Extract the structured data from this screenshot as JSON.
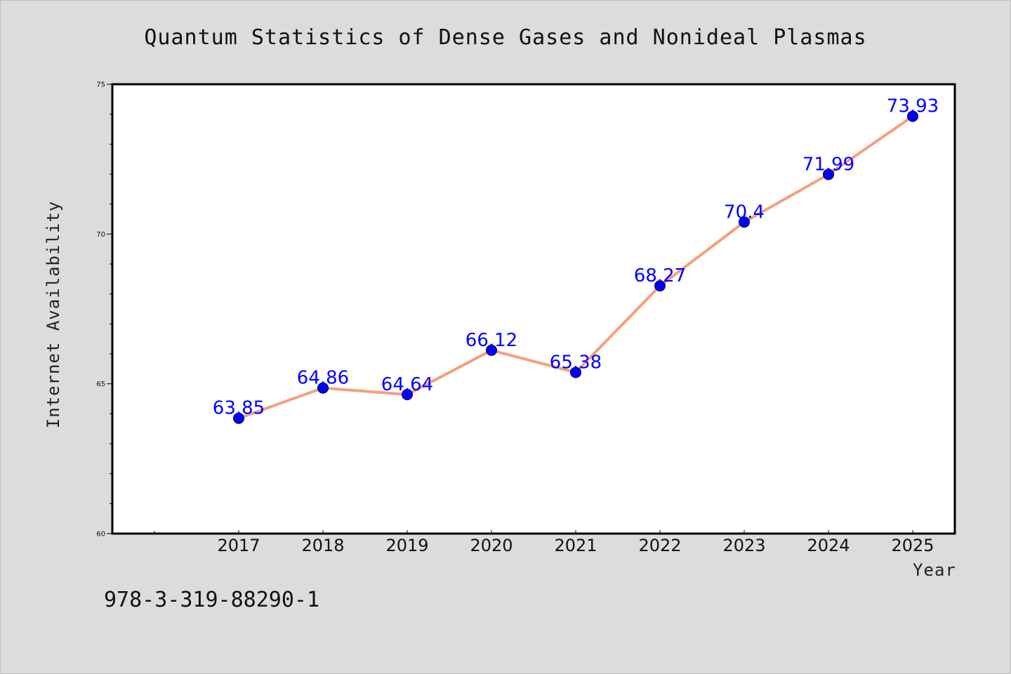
{
  "chart_data": {
    "type": "line",
    "title": "Quantum Statistics of Dense Gases and Nonideal Plasmas",
    "xlabel": "Year",
    "ylabel": "Internet Availability",
    "categories": [
      "2017",
      "2018",
      "2019",
      "2020",
      "2021",
      "2022",
      "2023",
      "2024",
      "2025"
    ],
    "series": [
      {
        "values": [
          63.85,
          64.86,
          64.64,
          66.12,
          65.38,
          68.27,
          70.4,
          71.99,
          73.93
        ],
        "labels": [
          "63.85",
          "64.86",
          "64.64",
          "66.12",
          "65.38",
          "68.27",
          "70.4",
          "71.99",
          "73.93"
        ]
      }
    ],
    "ylim": [
      60,
      75
    ],
    "yticks": [
      "60",
      "65",
      "70",
      "75"
    ],
    "yminor_step": 1,
    "grid": false,
    "line_color": "#f4a07c",
    "marker_color": "#0000ff",
    "label_color": "#0000ff",
    "background": "#dcdcdc",
    "plot_background": "#ffffff"
  },
  "footer": {
    "isbn": "978-3-319-88290-1"
  }
}
